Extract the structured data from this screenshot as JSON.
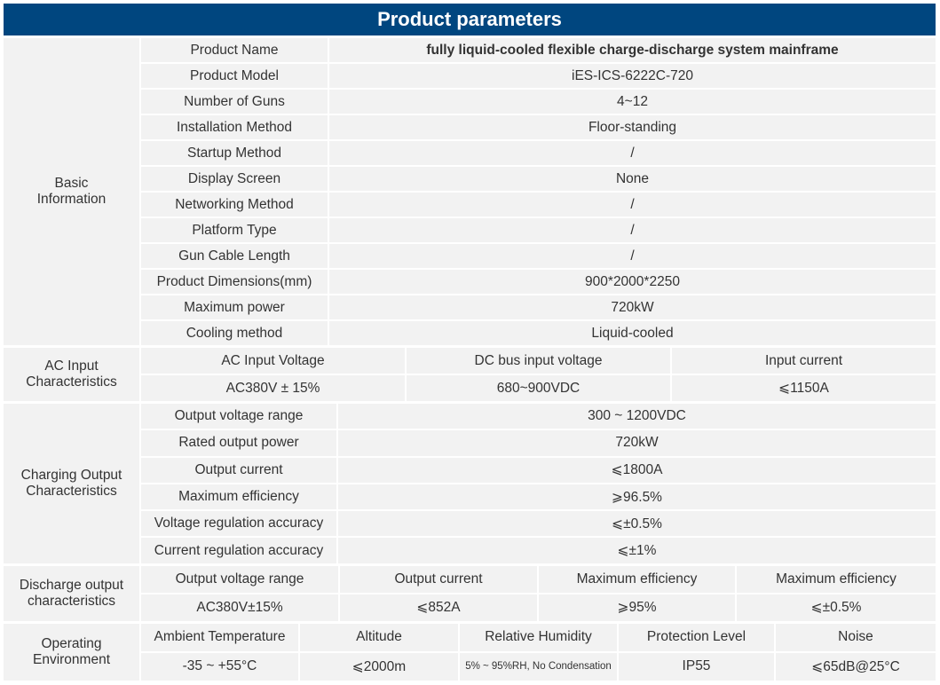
{
  "title": "Product parameters",
  "colors": {
    "header_bg": "#00467f",
    "cell_bg": "#f2f2f2"
  },
  "basic": {
    "label": "Basic\nInformation",
    "rows": [
      {
        "k": "Product Name",
        "v": "fully liquid-cooled flexible charge-discharge system mainframe"
      },
      {
        "k": "Product Model",
        "v": "iES-ICS-6222C-720"
      },
      {
        "k": "Number of Guns",
        "v": "4~12"
      },
      {
        "k": "Installation Method",
        "v": "Floor-standing"
      },
      {
        "k": "Startup Method",
        "v": "/"
      },
      {
        "k": "Display Screen",
        "v": "None"
      },
      {
        "k": "Networking Method",
        "v": "/"
      },
      {
        "k": "Platform Type",
        "v": "/"
      },
      {
        "k": "Gun Cable Length",
        "v": "/"
      },
      {
        "k": "Product Dimensions(mm)",
        "v": "900*2000*2250"
      },
      {
        "k": "Maximum power",
        "v": "720kW"
      },
      {
        "k": "Cooling method",
        "v": "Liquid-cooled"
      }
    ]
  },
  "ac_input": {
    "label": "AC Input\nCharacteristics",
    "headers": [
      "AC Input Voltage",
      "DC bus input voltage",
      "Input current"
    ],
    "values": [
      "AC380V ± 15%",
      "680~900VDC",
      "⩽1150A"
    ]
  },
  "charging": {
    "label": "Charging Output\nCharacteristics",
    "rows": [
      {
        "k": "Output voltage range",
        "v": "300 ~ 1200VDC"
      },
      {
        "k": "Rated output power",
        "v": "720kW"
      },
      {
        "k": "Output current",
        "v": "⩽1800A"
      },
      {
        "k": "Maximum efficiency",
        "v": "⩾96.5%"
      },
      {
        "k": "Voltage regulation accuracy",
        "v": "⩽±0.5%"
      },
      {
        "k": "Current regulation accuracy",
        "v": "⩽±1%"
      }
    ]
  },
  "discharge": {
    "label": "Discharge output\ncharacteristics",
    "headers": [
      "Output voltage range",
      "Output current",
      "Maximum efficiency",
      "Maximum efficiency"
    ],
    "values": [
      "AC380V±15%",
      "⩽852A",
      "⩾95%",
      "⩽±0.5%"
    ]
  },
  "environment": {
    "label": "Operating\nEnvironment",
    "headers": [
      "Ambient Temperature",
      "Altitude",
      "Relative Humidity",
      "Protection Level",
      "Noise"
    ],
    "values": [
      "-35 ~ +55°C",
      "⩽2000m",
      "5% ~ 95%RH, No Condensation",
      "IP55",
      "⩽65dB@25°C"
    ]
  }
}
